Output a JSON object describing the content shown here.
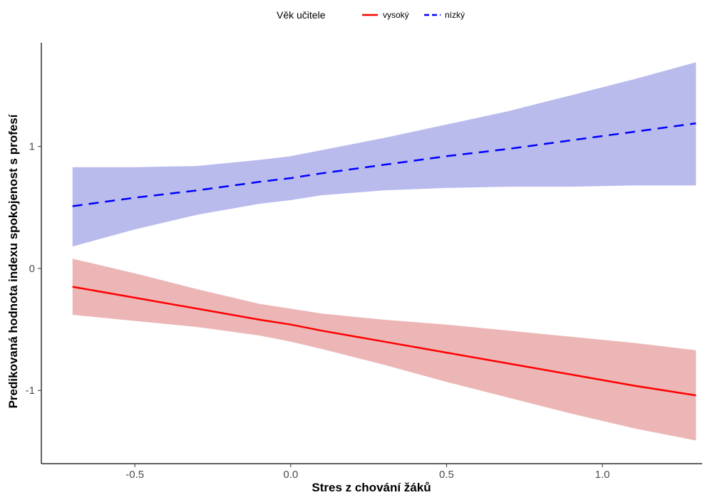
{
  "chart_data": {
    "type": "line",
    "xlabel": "Stres z chování žáků",
    "ylabel": "Predikovaná hodnota indexu spokojenost s profesí",
    "xlim": [
      -0.8,
      1.32
    ],
    "ylim": [
      -1.6,
      1.85
    ],
    "x_ticks": [
      -0.5,
      0.0,
      0.5,
      1.0
    ],
    "x_tick_labels": [
      "-0.5",
      "0.0",
      "0.5",
      "1.0"
    ],
    "y_ticks": [
      -1,
      0,
      1
    ],
    "y_tick_labels": [
      "-1",
      "0",
      "1"
    ],
    "grid": false,
    "legend": {
      "title": "Věk učitele",
      "position": "top",
      "entries": [
        {
          "label": "vysoký",
          "color": "#ff0000",
          "linestyle": "solid"
        },
        {
          "label": "nízký",
          "color": "#0000ff",
          "linestyle": "dashed"
        }
      ]
    },
    "series": [
      {
        "name": "vysoký",
        "color": "#ff0000",
        "band_color": "#e8a4a4",
        "linestyle": "solid",
        "x": [
          -0.7,
          -0.5,
          -0.3,
          -0.1,
          0.0,
          0.1,
          0.3,
          0.5,
          0.7,
          0.9,
          1.1,
          1.3
        ],
        "y": [
          -0.15,
          -0.24,
          -0.33,
          -0.42,
          -0.46,
          -0.51,
          -0.6,
          -0.69,
          -0.78,
          -0.87,
          -0.96,
          -1.04
        ],
        "lower": [
          -0.38,
          -0.43,
          -0.48,
          -0.55,
          -0.6,
          -0.66,
          -0.79,
          -0.93,
          -1.06,
          -1.19,
          -1.31,
          -1.41
        ],
        "upper": [
          0.08,
          -0.04,
          -0.17,
          -0.29,
          -0.33,
          -0.37,
          -0.42,
          -0.46,
          -0.51,
          -0.56,
          -0.61,
          -0.67
        ]
      },
      {
        "name": "nízký",
        "color": "#0000ff",
        "band_color": "#a9aae9",
        "linestyle": "dashed",
        "x": [
          -0.7,
          -0.5,
          -0.3,
          -0.1,
          0.0,
          0.1,
          0.3,
          0.5,
          0.7,
          0.9,
          1.1,
          1.3
        ],
        "y": [
          0.51,
          0.58,
          0.64,
          0.71,
          0.74,
          0.78,
          0.85,
          0.92,
          0.98,
          1.05,
          1.12,
          1.19
        ],
        "lower": [
          0.18,
          0.32,
          0.44,
          0.53,
          0.56,
          0.6,
          0.64,
          0.66,
          0.67,
          0.67,
          0.68,
          0.68
        ],
        "upper": [
          0.83,
          0.83,
          0.84,
          0.89,
          0.92,
          0.97,
          1.07,
          1.18,
          1.29,
          1.42,
          1.55,
          1.69
        ]
      }
    ]
  }
}
